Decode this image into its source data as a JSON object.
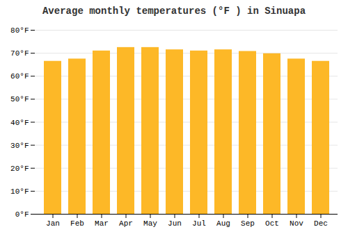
{
  "chart_data": {
    "type": "bar",
    "title": "Average monthly temperatures (°F ) in Sinuapa",
    "categories": [
      "Jan",
      "Feb",
      "Mar",
      "Apr",
      "May",
      "Jun",
      "Jul",
      "Aug",
      "Sep",
      "Oct",
      "Nov",
      "Dec"
    ],
    "values": [
      66.5,
      67.5,
      71.0,
      72.5,
      72.5,
      71.5,
      71.0,
      71.5,
      70.8,
      69.8,
      67.5,
      66.5
    ],
    "color": "#FDB827",
    "ylim": [
      0,
      80
    ],
    "yticks": [
      {
        "value": 0,
        "label": "0°F"
      },
      {
        "value": 10,
        "label": "10°F"
      },
      {
        "value": 20,
        "label": "20°F"
      },
      {
        "value": 30,
        "label": "30°F"
      },
      {
        "value": 40,
        "label": "40°F"
      },
      {
        "value": 50,
        "label": "50°F"
      },
      {
        "value": 60,
        "label": "60°F"
      },
      {
        "value": 70,
        "label": "70°F"
      },
      {
        "value": 80,
        "label": "80°F"
      }
    ],
    "grid": true
  }
}
